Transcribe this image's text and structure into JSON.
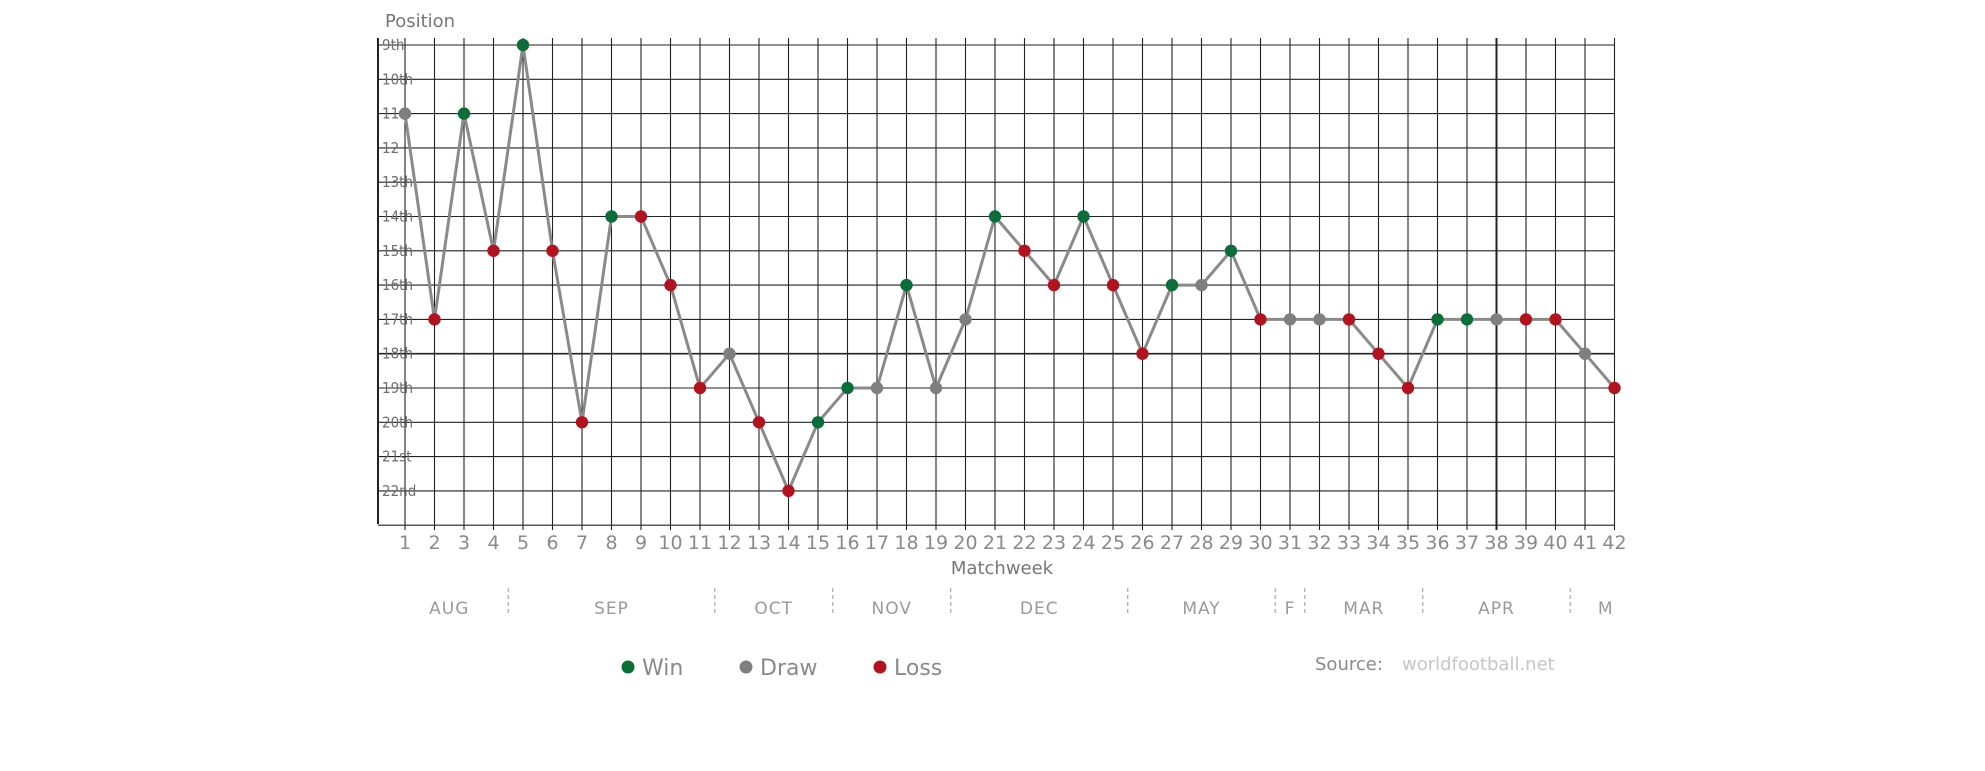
{
  "chart_data": {
    "type": "line",
    "ylabel": "Position",
    "xlabel": "Matchweek",
    "y_ticks": [
      "9th",
      "10th",
      "11",
      "12",
      "13th",
      "14th",
      "15th",
      "16th",
      "17th",
      "18th",
      "19th",
      "20th",
      "21st",
      "22nd"
    ],
    "ylim": [
      9,
      23
    ],
    "y_inverted": true,
    "xlim": [
      1,
      42
    ],
    "x": [
      1,
      2,
      3,
      4,
      5,
      6,
      7,
      8,
      9,
      10,
      11,
      12,
      13,
      14,
      15,
      16,
      17,
      18,
      19,
      20,
      21,
      22,
      23,
      24,
      25,
      26,
      27,
      28,
      29,
      30,
      31,
      32,
      33,
      34,
      35,
      36,
      37,
      38,
      39,
      40,
      41,
      42
    ],
    "series": [
      {
        "values": [
          11,
          17,
          11,
          15,
          9,
          15,
          20,
          14,
          14,
          16,
          19,
          18,
          20,
          22,
          20,
          19,
          19,
          16,
          19,
          17,
          14,
          15,
          16,
          14,
          16,
          18,
          16,
          16,
          15,
          17,
          17,
          17,
          17,
          18,
          19,
          17,
          17,
          17,
          17,
          17,
          18,
          19
        ],
        "results": [
          "D",
          "L",
          "W",
          "L",
          "W",
          "L",
          "L",
          "W",
          "L",
          "L",
          "L",
          "D",
          "L",
          "L",
          "W",
          "W",
          "D",
          "W",
          "D",
          "D",
          "W",
          "L",
          "L",
          "W",
          "L",
          "L",
          "W",
          "D",
          "W",
          "L",
          "D",
          "D",
          "L",
          "L",
          "L",
          "W",
          "W",
          "D",
          "L",
          "L",
          "D",
          "L"
        ]
      }
    ],
    "months": [
      "AUG",
      "SEP",
      "OCT",
      "NOV",
      "DEC",
      "MAY",
      "F",
      "MAR",
      "APR",
      "M"
    ],
    "month_spans": [
      [
        1,
        4
      ],
      [
        5,
        11
      ],
      [
        12,
        15
      ],
      [
        16,
        19
      ],
      [
        20,
        25
      ],
      [
        26,
        30
      ],
      [
        31
      ],
      [
        32,
        35
      ],
      [
        36,
        40
      ],
      [
        41,
        42
      ]
    ],
    "legend": [
      {
        "key": "W",
        "label": "Win"
      },
      {
        "key": "D",
        "label": "Draw"
      },
      {
        "key": "L",
        "label": "Loss"
      }
    ],
    "legend_placement": "bottom",
    "grid": true,
    "colors": {
      "W": "#0b6e3a",
      "D": "#7f7f7f",
      "L": "#b3121f",
      "line": "#8a8a8a",
      "grid": "#222222"
    }
  },
  "source": {
    "label": "Source:",
    "value": "worldfootball.net"
  }
}
